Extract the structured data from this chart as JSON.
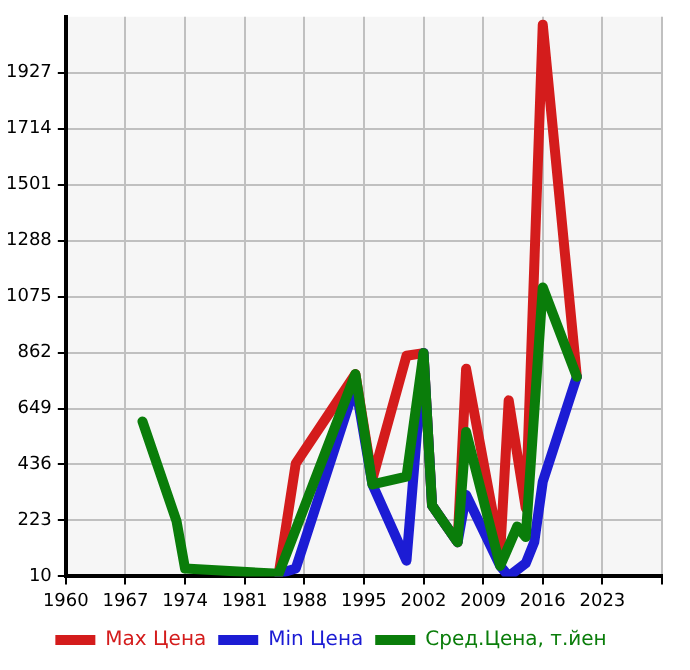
{
  "chart_data": {
    "type": "line",
    "xlim": [
      1960,
      2030
    ],
    "ylim": [
      10,
      2140
    ],
    "xticks": [
      1960,
      1967,
      1974,
      1981,
      1988,
      1995,
      2002,
      2009,
      2016,
      2023,
      {
        "value": 2030,
        "label": null
      }
    ],
    "yticks": [
      10,
      223,
      436,
      649,
      862,
      1075,
      1288,
      1501,
      1714,
      1927
    ],
    "grid": true,
    "legend": "bottom",
    "marker": "none",
    "line_style": "solid",
    "series": [
      {
        "name": "Max Цена",
        "color": "#d41c1c",
        "x": [
          1985,
          1987,
          1994,
          1996,
          2000,
          2002,
          2003,
          2006,
          2007,
          2011,
          2012,
          2014,
          2016,
          2020
        ],
        "values": [
          20,
          440,
          780,
          380,
          850,
          860,
          280,
          140,
          800,
          100,
          680,
          270,
          2110,
          770
        ]
      },
      {
        "name": "Min Цена",
        "color": "#1c1cd4",
        "x": [
          1985,
          1987,
          1994,
          1996,
          2000,
          2002,
          2003,
          2006,
          2007,
          2011,
          2012,
          2014,
          2015,
          2016,
          2020
        ],
        "values": [
          20,
          40,
          740,
          360,
          70,
          860,
          280,
          140,
          320,
          50,
          10,
          60,
          140,
          370,
          770
        ]
      },
      {
        "name": "Сред.Цена, т.йен",
        "color": "#0a7d0a",
        "x": [
          1969,
          1973,
          1974,
          1985,
          1994,
          1996,
          2000,
          2002,
          2003,
          2006,
          2007,
          2011,
          2013,
          2014,
          2016,
          2020
        ],
        "values": [
          600,
          220,
          40,
          20,
          780,
          360,
          390,
          860,
          280,
          140,
          560,
          50,
          200,
          160,
          1110,
          770
        ]
      }
    ]
  }
}
